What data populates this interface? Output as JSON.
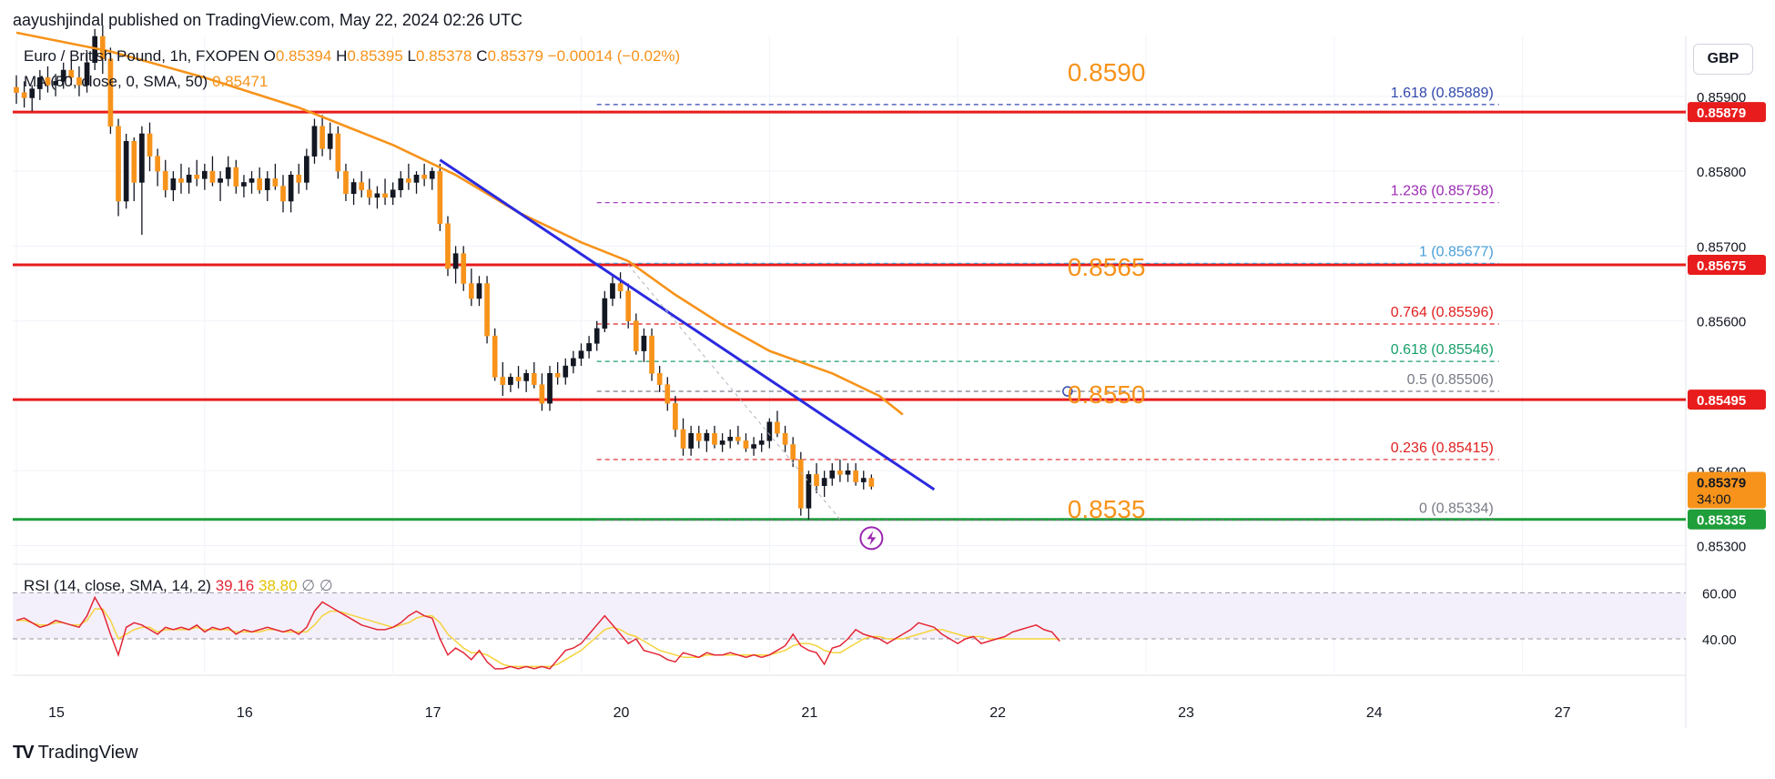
{
  "header": {
    "published_by": "aayushjindal published on TradingView.com, May 22, 2024 02:26 UTC"
  },
  "legend": {
    "symbol": "Euro / British Pound, 1h, FXOPEN",
    "o_label": "O",
    "o_value": "0.85394",
    "h_label": "H",
    "h_value": "0.85395",
    "l_label": "L",
    "l_value": "0.85378",
    "c_label": "C",
    "c_value": "0.85379",
    "change": "−0.00014 (−0.02%)",
    "ma_label": "MA (50, close, 0, SMA, 50)",
    "ma_value": "0.85471"
  },
  "rsi_legend": {
    "label": "RSI (14, close, SMA, 14, 2)",
    "rsi_value": "39.16",
    "sma_value": "38.80",
    "extra1": "∅",
    "extra2": "∅"
  },
  "currency_button": "GBP",
  "brand": "TradingView",
  "colors": {
    "candle": "#f7931a",
    "ma": "#f7931a",
    "trendline": "#2a2ae0",
    "resistance": "#e81c1c",
    "support": "#1f9e3a",
    "rsi": "#e32636",
    "rsi_sma": "#f5d33c"
  },
  "chart_data": {
    "type": "candlestick",
    "price_axis": {
      "min": 0.8528,
      "max": 0.8598,
      "ticks": [
        "0.85900",
        "0.85800",
        "0.85700",
        "0.85600",
        "0.85400",
        "0.85300"
      ],
      "tick_values": [
        0.859,
        0.858,
        0.857,
        0.856,
        0.854,
        0.853
      ]
    },
    "time_axis": {
      "labels": [
        "15",
        "16",
        "17",
        "20",
        "21",
        "22",
        "23",
        "24",
        "27"
      ],
      "label_bars": [
        0,
        24,
        48,
        72,
        96,
        120,
        144,
        168,
        192
      ],
      "total_bars": 212
    },
    "candles": [
      [
        0.85912,
        0.85928,
        0.8589,
        0.85905
      ],
      [
        0.85905,
        0.8592,
        0.85885,
        0.85898
      ],
      [
        0.85898,
        0.85915,
        0.8588,
        0.8591
      ],
      [
        0.8591,
        0.85935,
        0.85895,
        0.85925
      ],
      [
        0.85925,
        0.8594,
        0.85905,
        0.85915
      ],
      [
        0.85915,
        0.8593,
        0.859,
        0.8592
      ],
      [
        0.8592,
        0.85945,
        0.8591,
        0.85935
      ],
      [
        0.85935,
        0.8595,
        0.85915,
        0.85925
      ],
      [
        0.85925,
        0.8594,
        0.859,
        0.85915
      ],
      [
        0.85915,
        0.8596,
        0.85905,
        0.85945
      ],
      [
        0.85945,
        0.8599,
        0.85935,
        0.8598
      ],
      [
        0.8598,
        0.85995,
        0.8593,
        0.8595
      ],
      [
        0.8595,
        0.85965,
        0.8585,
        0.8586
      ],
      [
        0.8586,
        0.8587,
        0.8574,
        0.8576
      ],
      [
        0.8576,
        0.8585,
        0.8575,
        0.8584
      ],
      [
        0.8584,
        0.85845,
        0.8576,
        0.85785
      ],
      [
        0.85785,
        0.8586,
        0.85715,
        0.8585
      ],
      [
        0.8585,
        0.85865,
        0.858,
        0.8582
      ],
      [
        0.8582,
        0.8583,
        0.8578,
        0.858
      ],
      [
        0.858,
        0.85815,
        0.85765,
        0.85775
      ],
      [
        0.85775,
        0.858,
        0.8576,
        0.8579
      ],
      [
        0.8579,
        0.8581,
        0.8577,
        0.85785
      ],
      [
        0.85785,
        0.85805,
        0.8577,
        0.85795
      ],
      [
        0.85795,
        0.85815,
        0.8578,
        0.8579
      ],
      [
        0.8579,
        0.8581,
        0.85775,
        0.858
      ],
      [
        0.858,
        0.8582,
        0.8578,
        0.85785
      ],
      [
        0.85785,
        0.858,
        0.8576,
        0.8579
      ],
      [
        0.8579,
        0.8582,
        0.8578,
        0.85805
      ],
      [
        0.85805,
        0.85815,
        0.8577,
        0.8578
      ],
      [
        0.8578,
        0.85795,
        0.85765,
        0.85785
      ],
      [
        0.85785,
        0.858,
        0.8577,
        0.8579
      ],
      [
        0.8579,
        0.85805,
        0.8577,
        0.85775
      ],
      [
        0.85775,
        0.858,
        0.8576,
        0.8579
      ],
      [
        0.8579,
        0.8581,
        0.85775,
        0.8578
      ],
      [
        0.8578,
        0.85795,
        0.85745,
        0.8576
      ],
      [
        0.8576,
        0.858,
        0.85745,
        0.85795
      ],
      [
        0.85795,
        0.8581,
        0.8577,
        0.85785
      ],
      [
        0.85785,
        0.8583,
        0.85775,
        0.8582
      ],
      [
        0.8582,
        0.8587,
        0.8581,
        0.8586
      ],
      [
        0.8586,
        0.85875,
        0.8582,
        0.8583
      ],
      [
        0.8583,
        0.85865,
        0.85815,
        0.8585
      ],
      [
        0.8585,
        0.8586,
        0.8579,
        0.858
      ],
      [
        0.858,
        0.8581,
        0.8576,
        0.8577
      ],
      [
        0.8577,
        0.8579,
        0.85755,
        0.85785
      ],
      [
        0.85785,
        0.858,
        0.85765,
        0.85775
      ],
      [
        0.85775,
        0.8579,
        0.85755,
        0.85765
      ],
      [
        0.85765,
        0.8578,
        0.8575,
        0.8577
      ],
      [
        0.8577,
        0.8579,
        0.85755,
        0.85765
      ],
      [
        0.85765,
        0.85785,
        0.85755,
        0.85775
      ],
      [
        0.85775,
        0.858,
        0.85765,
        0.8579
      ],
      [
        0.8579,
        0.8581,
        0.85775,
        0.85785
      ],
      [
        0.85785,
        0.858,
        0.8577,
        0.85795
      ],
      [
        0.85795,
        0.8581,
        0.8578,
        0.8579
      ],
      [
        0.8579,
        0.85805,
        0.85775,
        0.858
      ],
      [
        0.858,
        0.8581,
        0.8572,
        0.8573
      ],
      [
        0.8573,
        0.8574,
        0.8566,
        0.8567
      ],
      [
        0.8567,
        0.857,
        0.8565,
        0.8569
      ],
      [
        0.8569,
        0.857,
        0.8564,
        0.8565
      ],
      [
        0.8565,
        0.8567,
        0.8562,
        0.8563
      ],
      [
        0.8563,
        0.8566,
        0.8562,
        0.8565
      ],
      [
        0.8565,
        0.8566,
        0.8557,
        0.8558
      ],
      [
        0.8558,
        0.8559,
        0.8552,
        0.85525
      ],
      [
        0.85525,
        0.85545,
        0.855,
        0.85515
      ],
      [
        0.85515,
        0.8553,
        0.85505,
        0.85525
      ],
      [
        0.85525,
        0.8554,
        0.8551,
        0.8552
      ],
      [
        0.8552,
        0.85535,
        0.85505,
        0.8553
      ],
      [
        0.8553,
        0.85545,
        0.8551,
        0.85515
      ],
      [
        0.85515,
        0.8553,
        0.8548,
        0.8549
      ],
      [
        0.8549,
        0.8554,
        0.8548,
        0.8553
      ],
      [
        0.8553,
        0.85545,
        0.85515,
        0.85525
      ],
      [
        0.85525,
        0.8555,
        0.85515,
        0.8554
      ],
      [
        0.8554,
        0.8556,
        0.8553,
        0.8555
      ],
      [
        0.8555,
        0.8557,
        0.8554,
        0.8556
      ],
      [
        0.8556,
        0.8558,
        0.8555,
        0.8557
      ],
      [
        0.8557,
        0.856,
        0.8556,
        0.8559
      ],
      [
        0.8559,
        0.8564,
        0.85585,
        0.8563
      ],
      [
        0.8563,
        0.8566,
        0.8562,
        0.8565
      ],
      [
        0.8565,
        0.85665,
        0.8563,
        0.8564
      ],
      [
        0.8564,
        0.8565,
        0.8559,
        0.856
      ],
      [
        0.856,
        0.8561,
        0.85555,
        0.8556
      ],
      [
        0.8556,
        0.8559,
        0.85545,
        0.8558
      ],
      [
        0.8558,
        0.8559,
        0.8552,
        0.8553
      ],
      [
        0.8553,
        0.8554,
        0.85505,
        0.85515
      ],
      [
        0.85515,
        0.85525,
        0.8548,
        0.8549
      ],
      [
        0.8549,
        0.855,
        0.85445,
        0.85455
      ],
      [
        0.85455,
        0.8547,
        0.8542,
        0.8543
      ],
      [
        0.8543,
        0.8546,
        0.8542,
        0.8545
      ],
      [
        0.8545,
        0.8546,
        0.8543,
        0.8544
      ],
      [
        0.8544,
        0.85455,
        0.85425,
        0.8545
      ],
      [
        0.8545,
        0.8546,
        0.8543,
        0.85435
      ],
      [
        0.85435,
        0.8545,
        0.85425,
        0.8544
      ],
      [
        0.8544,
        0.85455,
        0.8543,
        0.85445
      ],
      [
        0.85445,
        0.8546,
        0.85435,
        0.8544
      ],
      [
        0.8544,
        0.8545,
        0.85425,
        0.8543
      ],
      [
        0.8543,
        0.85445,
        0.8542,
        0.85435
      ],
      [
        0.85435,
        0.8545,
        0.85425,
        0.8544
      ],
      [
        0.8544,
        0.8547,
        0.8543,
        0.85465
      ],
      [
        0.85465,
        0.8548,
        0.85445,
        0.8545
      ],
      [
        0.8545,
        0.8546,
        0.85425,
        0.85435
      ],
      [
        0.85435,
        0.85445,
        0.85405,
        0.85415
      ],
      [
        0.85415,
        0.85425,
        0.8534,
        0.8535
      ],
      [
        0.8535,
        0.854,
        0.85335,
        0.85395
      ],
      [
        0.85395,
        0.8541,
        0.8537,
        0.8538
      ],
      [
        0.8538,
        0.854,
        0.85365,
        0.8539
      ],
      [
        0.8539,
        0.8541,
        0.8538,
        0.854
      ],
      [
        0.854,
        0.85415,
        0.85385,
        0.85395
      ],
      [
        0.85395,
        0.8541,
        0.85385,
        0.854
      ],
      [
        0.854,
        0.8541,
        0.8538,
        0.85385
      ],
      [
        0.85385,
        0.854,
        0.85375,
        0.8539
      ],
      [
        0.8539,
        0.85395,
        0.85375,
        0.85379
      ]
    ],
    "moving_average": [
      [
        0,
        0.85985
      ],
      [
        12,
        0.8596
      ],
      [
        24,
        0.85925
      ],
      [
        36,
        0.85885
      ],
      [
        48,
        0.85835
      ],
      [
        56,
        0.85795
      ],
      [
        64,
        0.85745
      ],
      [
        72,
        0.85705
      ],
      [
        78,
        0.8568
      ],
      [
        84,
        0.85635
      ],
      [
        90,
        0.85595
      ],
      [
        96,
        0.8556
      ],
      [
        104,
        0.8553
      ],
      [
        110,
        0.855
      ],
      [
        113,
        0.85475
      ]
    ],
    "trendline": {
      "from": [
        54,
        0.85815
      ],
      "to": [
        117,
        0.85375
      ]
    },
    "dashed_trend": {
      "from": [
        78,
        0.85675
      ],
      "to": [
        105,
        0.85335
      ]
    },
    "horizontal_levels": [
      {
        "price": 0.85879,
        "label": "0.85879",
        "color": "red"
      },
      {
        "price": 0.85675,
        "label": "0.85675",
        "color": "red"
      },
      {
        "price": 0.85495,
        "label": "0.85495",
        "color": "red"
      },
      {
        "price": 0.85335,
        "label": "0.85335",
        "color": "green"
      }
    ],
    "current_price": {
      "price": 0.85379,
      "label": "0.85379",
      "countdown": "34:00"
    },
    "annotations": [
      {
        "text": "0.8590",
        "price": 0.85935,
        "bar": 134
      },
      {
        "text": "0.8565",
        "price": 0.85675,
        "bar": 134
      },
      {
        "text": "0.8550",
        "price": 0.85505,
        "bar": 134
      },
      {
        "text": "0.8535",
        "price": 0.85352,
        "bar": 134
      }
    ],
    "fibonacci": {
      "from_bar": 74,
      "to_bar": 189,
      "levels": [
        {
          "ratio": "1.618",
          "price": 0.85889,
          "label": "0.85889",
          "color": "#3248ad"
        },
        {
          "ratio": "1.236",
          "price": 0.85758,
          "label": "0.85758",
          "color": "#9b2bb3"
        },
        {
          "ratio": "1",
          "price": 0.85677,
          "label": "0.85677",
          "color": "#4a9fd8"
        },
        {
          "ratio": "0.764",
          "price": 0.85596,
          "label": "0.85596",
          "color": "#e02020"
        },
        {
          "ratio": "0.618",
          "price": 0.85546,
          "label": "0.85546",
          "color": "#18a06a"
        },
        {
          "ratio": "0.5",
          "price": 0.85506,
          "label": "0.85506",
          "color": "#787b86"
        },
        {
          "ratio": "0.236",
          "price": 0.85415,
          "label": "0.85415",
          "color": "#e02020"
        },
        {
          "ratio": "0",
          "price": 0.85334,
          "label": "0.85334",
          "color": "#787b86"
        }
      ]
    },
    "rsi": {
      "axis": {
        "min": 25,
        "max": 70,
        "ticks": [
          "60.00",
          "40.00"
        ],
        "tick_values": [
          60,
          40
        ]
      },
      "bands": [
        60,
        40
      ],
      "rsi_values": [
        48,
        49,
        47,
        45,
        46,
        48,
        47,
        46,
        45,
        50,
        58,
        52,
        42,
        33,
        45,
        47,
        46,
        44,
        42,
        45,
        44,
        45,
        44,
        46,
        43,
        45,
        44,
        45,
        42,
        44,
        43,
        44,
        45,
        44,
        43,
        44,
        42,
        45,
        52,
        56,
        54,
        52,
        50,
        48,
        46,
        45,
        44,
        44,
        45,
        47,
        50,
        52,
        50,
        49,
        40,
        33,
        36,
        34,
        31,
        35,
        30,
        27,
        27,
        28,
        27,
        28,
        27,
        28,
        27,
        31,
        35,
        36,
        38,
        42,
        46,
        50,
        46,
        42,
        38,
        40,
        35,
        34,
        33,
        31,
        30,
        34,
        33,
        32,
        34,
        33,
        33,
        34,
        33,
        32,
        33,
        32,
        33,
        35,
        37,
        42,
        37,
        35,
        34,
        29,
        36,
        37,
        40,
        44,
        42,
        41,
        40,
        38,
        40,
        42,
        44,
        47,
        46,
        45,
        42,
        40,
        38,
        40,
        41,
        38,
        39,
        40,
        41,
        43,
        44,
        45,
        46,
        44,
        43,
        39
      ],
      "sma_values": [
        48,
        48,
        47,
        46,
        46,
        47,
        47,
        46,
        46,
        48,
        53,
        53,
        48,
        40,
        42,
        44,
        45,
        45,
        43,
        44,
        44,
        44,
        44,
        45,
        44,
        44,
        44,
        44,
        43,
        43,
        43,
        43,
        44,
        44,
        43,
        43,
        43,
        43,
        46,
        50,
        52,
        52,
        51,
        50,
        49,
        48,
        47,
        46,
        45,
        46,
        47,
        49,
        50,
        50,
        47,
        42,
        39,
        36,
        34,
        34,
        33,
        31,
        29,
        28,
        28,
        28,
        28,
        28,
        28,
        29,
        31,
        33,
        35,
        38,
        41,
        44,
        45,
        44,
        42,
        41,
        39,
        37,
        35,
        34,
        33,
        32,
        32,
        32,
        33,
        33,
        33,
        33,
        33,
        33,
        33,
        33,
        33,
        34,
        35,
        37,
        38,
        38,
        37,
        35,
        34,
        34,
        36,
        38,
        40,
        41,
        41,
        40,
        40,
        40,
        41,
        42,
        43,
        44,
        44,
        43,
        42,
        41,
        41,
        41,
        40,
        40,
        40,
        40,
        40,
        40,
        40,
        40,
        40,
        40
      ]
    }
  }
}
